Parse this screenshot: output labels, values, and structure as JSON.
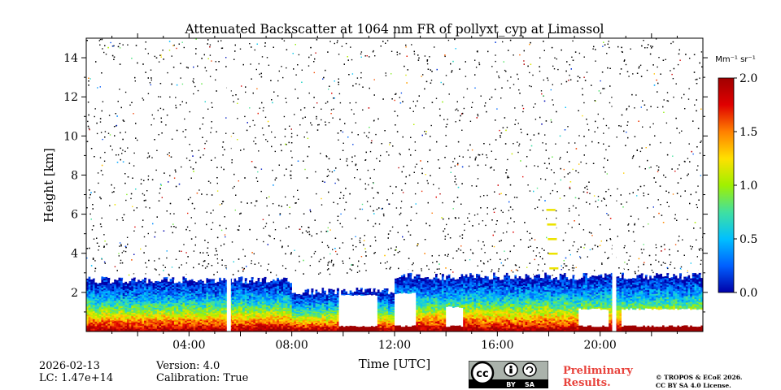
{
  "chart_data": {
    "type": "heatmap",
    "title": "Attenuated Backscatter at 1064 nm FR of pollyxt_cyp at Limassol",
    "xlabel": "Time [UTC]",
    "ylabel": "Height [km]",
    "xlim_hours": [
      0,
      24
    ],
    "ylim_km": [
      0,
      15
    ],
    "x_ticks": [
      {
        "value": 4,
        "label": "04:00"
      },
      {
        "value": 8,
        "label": "08:00"
      },
      {
        "value": 12,
        "label": "12:00"
      },
      {
        "value": 16,
        "label": "16:00"
      },
      {
        "value": 20,
        "label": "20:00"
      }
    ],
    "y_ticks": [
      {
        "value": 2,
        "label": "2"
      },
      {
        "value": 4,
        "label": "4"
      },
      {
        "value": 6,
        "label": "6"
      },
      {
        "value": 8,
        "label": "8"
      },
      {
        "value": 10,
        "label": "10"
      },
      {
        "value": 12,
        "label": "12"
      },
      {
        "value": 14,
        "label": "14"
      }
    ],
    "colorbar": {
      "unit_label": "Mm⁻¹ sr⁻¹",
      "range": [
        0.0,
        2.0
      ],
      "ticks": [
        {
          "value": 0.0,
          "label": "0.0"
        },
        {
          "value": 0.5,
          "label": "0.5"
        },
        {
          "value": 1.0,
          "label": "1.0"
        },
        {
          "value": 1.5,
          "label": "1.5"
        },
        {
          "value": 2.0,
          "label": "2.0"
        }
      ],
      "colormap": [
        "#0000a8",
        "#0060ff",
        "#00c0ff",
        "#40e0a0",
        "#a0f000",
        "#ffe000",
        "#ff8000",
        "#e00000",
        "#a00000"
      ]
    },
    "data_gaps_hours": [
      5.55,
      20.55
    ],
    "features": {
      "boundary_layer_top_km": [
        {
          "start_h": 0.0,
          "end_h": 5.5,
          "height_km": 2.8
        },
        {
          "start_h": 5.6,
          "end_h": 8.0,
          "height_km": 2.8
        },
        {
          "start_h": 8.0,
          "end_h": 12.0,
          "height_km": 2.2
        },
        {
          "start_h": 12.0,
          "end_h": 20.5,
          "height_km": 3.0
        },
        {
          "start_h": 20.6,
          "end_h": 24.0,
          "height_km": 3.0
        }
      ],
      "saturated_low_cloud": [
        {
          "start_h": 9.8,
          "end_h": 11.3,
          "top_km": 1.9
        },
        {
          "start_h": 12.0,
          "end_h": 12.8,
          "top_km": 2.0
        },
        {
          "start_h": 14.0,
          "end_h": 14.7,
          "top_km": 1.3
        },
        {
          "start_h": 19.2,
          "end_h": 20.3,
          "top_km": 1.2
        },
        {
          "start_h": 20.8,
          "end_h": 24.0,
          "top_km": 1.2
        }
      ],
      "elevated_cloud": [
        {
          "start_h": 17.9,
          "end_h": 18.4,
          "bottom_km": 3.2,
          "top_km": 6.4
        }
      ]
    }
  },
  "footer": {
    "date": "2026-02-13",
    "lc": "LC: 1.47e+14",
    "version": "Version: 4.0",
    "calibration": "Calibration: True",
    "preliminary_line1": "Preliminary",
    "preliminary_line2": "Results.",
    "copyright_line1": "© TROPOS & ECoE 2026.",
    "copyright_line2": "CC BY SA 4.0 License.",
    "license_badge": {
      "cc": "cc",
      "by": "BY",
      "sa": "SA"
    }
  }
}
